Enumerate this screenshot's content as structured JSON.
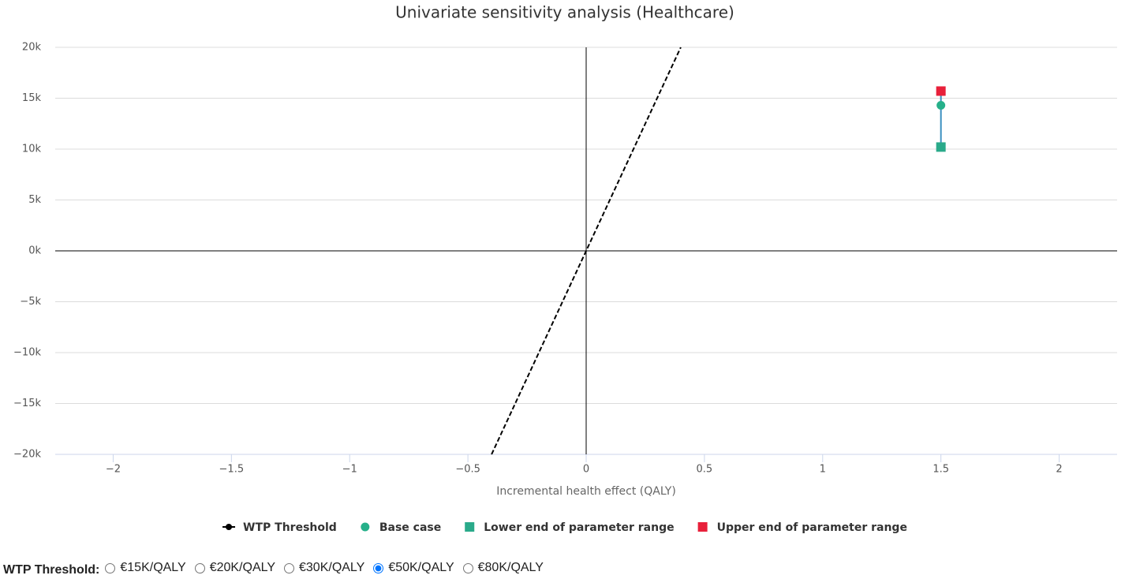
{
  "chart_data": {
    "type": "scatter",
    "title": "Univariate sensitivity analysis (Healthcare)",
    "xlabel": "Incremental health effect (QALY)",
    "xlim": [
      -2.245,
      2.245
    ],
    "ylim": [
      -20000,
      20000
    ],
    "xticks": [
      {
        "value": -2,
        "label": "−2"
      },
      {
        "value": -1.5,
        "label": "−1.5"
      },
      {
        "value": -1,
        "label": "−1"
      },
      {
        "value": -0.5,
        "label": "−0.5"
      },
      0,
      0.5,
      1,
      1.5,
      2
    ],
    "yticks": [
      {
        "value": 20000,
        "label": "20k"
      },
      {
        "value": 15000,
        "label": "15k"
      },
      {
        "value": 10000,
        "label": "10k"
      },
      {
        "value": 5000,
        "label": "5k"
      },
      {
        "value": 0,
        "label": "0k"
      },
      {
        "value": -5000,
        "label": "−5k"
      },
      {
        "value": -10000,
        "label": "−10k"
      },
      {
        "value": -15000,
        "label": "−15k"
      },
      {
        "value": -20000,
        "label": "−20k"
      }
    ],
    "grid": true,
    "series": [
      {
        "name": "WTP Threshold",
        "color": "#000000",
        "marker": "line",
        "dashed": true,
        "x": [
          -0.4,
          0.4
        ],
        "values": [
          -20000,
          20000
        ]
      },
      {
        "name": "Base case",
        "color": "#26b08a",
        "marker": "circle",
        "x": [
          1.5
        ],
        "values": [
          14300
        ]
      },
      {
        "name": "Lower end of parameter range",
        "color": "#2aaa8a",
        "marker": "square",
        "x": [
          1.5
        ],
        "values": [
          10200
        ]
      },
      {
        "name": "Upper end of parameter range",
        "color": "#e8203a",
        "marker": "square",
        "x": [
          1.5
        ],
        "values": [
          15700
        ]
      }
    ]
  },
  "controls": {
    "label": "WTP Threshold:",
    "options": [
      "€15K/QALY",
      "€20K/QALY",
      "€30K/QALY",
      "€50K/QALY",
      "€80K/QALY"
    ],
    "selected": 3
  }
}
